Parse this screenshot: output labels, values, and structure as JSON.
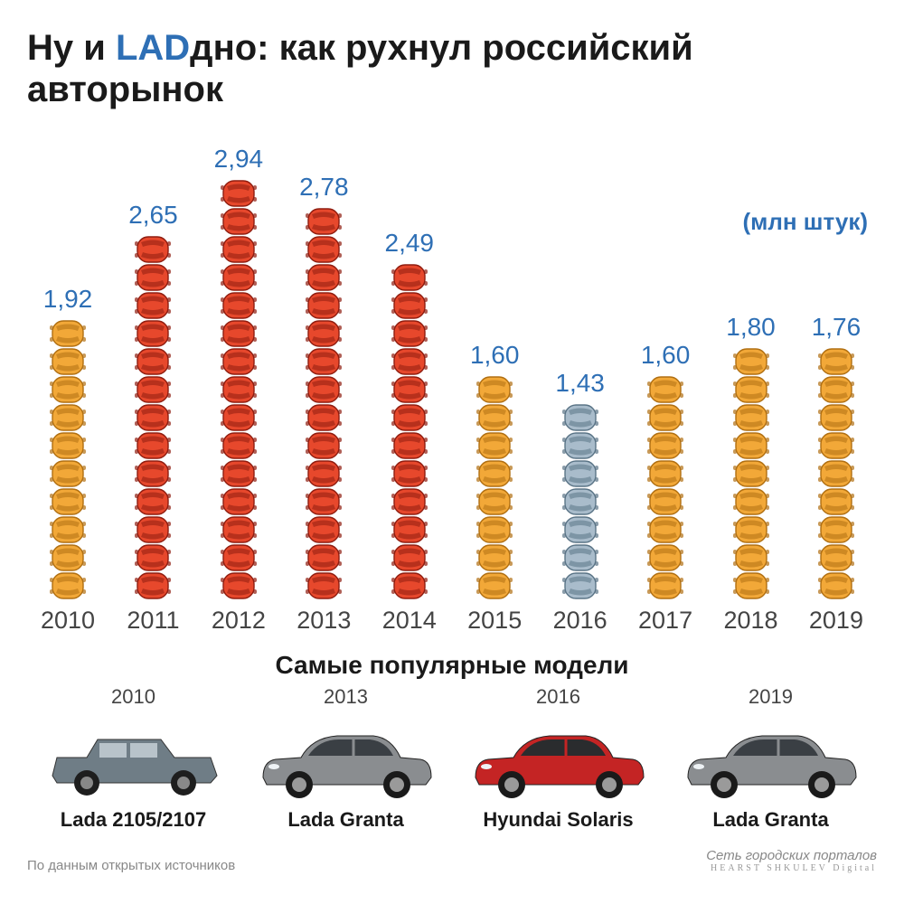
{
  "title": {
    "pre": "Ну и ",
    "accent": "LAD",
    "post": "дно: как рухнул российский авторынок"
  },
  "unit_label": "(млн штук)",
  "chart": {
    "type": "pictogram-bar",
    "value_color": "#2e6fb5",
    "year_color": "#444444",
    "background_color": "#ffffff",
    "value_fontsize": 28,
    "year_fontsize": 27,
    "icon_unit_height": 32,
    "columns": [
      {
        "year": "2010",
        "value": "1,92",
        "count": 10,
        "fill": "#f2a838",
        "stroke": "#b06f12"
      },
      {
        "year": "2011",
        "value": "2,65",
        "count": 13,
        "fill": "#e7482c",
        "stroke": "#8f1d10"
      },
      {
        "year": "2012",
        "value": "2,94",
        "count": 15,
        "fill": "#e7482c",
        "stroke": "#8f1d10"
      },
      {
        "year": "2013",
        "value": "2,78",
        "count": 14,
        "fill": "#e7482c",
        "stroke": "#8f1d10"
      },
      {
        "year": "2014",
        "value": "2,49",
        "count": 12,
        "fill": "#e7482c",
        "stroke": "#8f1d10"
      },
      {
        "year": "2015",
        "value": "1,60",
        "count": 8,
        "fill": "#f2a838",
        "stroke": "#b06f12"
      },
      {
        "year": "2016",
        "value": "1,43",
        "count": 7,
        "fill": "#a9bccb",
        "stroke": "#5a7486"
      },
      {
        "year": "2017",
        "value": "1,60",
        "count": 8,
        "fill": "#f2a838",
        "stroke": "#b06f12"
      },
      {
        "year": "2018",
        "value": "1,80",
        "count": 9,
        "fill": "#f2a838",
        "stroke": "#b06f12"
      },
      {
        "year": "2019",
        "value": "1,76",
        "count": 9,
        "fill": "#f2a838",
        "stroke": "#b06f12"
      }
    ]
  },
  "models": {
    "title": "Самые популярные модели",
    "items": [
      {
        "year": "2010",
        "name": "Lada 2105/2107",
        "body": "#6f7d86",
        "window": "#b8c3ca",
        "type": "sedan-classic"
      },
      {
        "year": "2013",
        "name": "Lada Granta",
        "body": "#8a8d90",
        "window": "#3a3f44",
        "type": "sedan"
      },
      {
        "year": "2016",
        "name": "Hyundai Solaris",
        "body": "#c42424",
        "window": "#2a2c2e",
        "type": "sedan"
      },
      {
        "year": "2019",
        "name": "Lada Granta",
        "body": "#8a8d90",
        "window": "#3a3f44",
        "type": "sedan"
      }
    ]
  },
  "footer": {
    "left": "По данным открытых источников",
    "right_main": "Сеть городских порталов",
    "right_sub": "HEARST SHKULEV Digital"
  }
}
